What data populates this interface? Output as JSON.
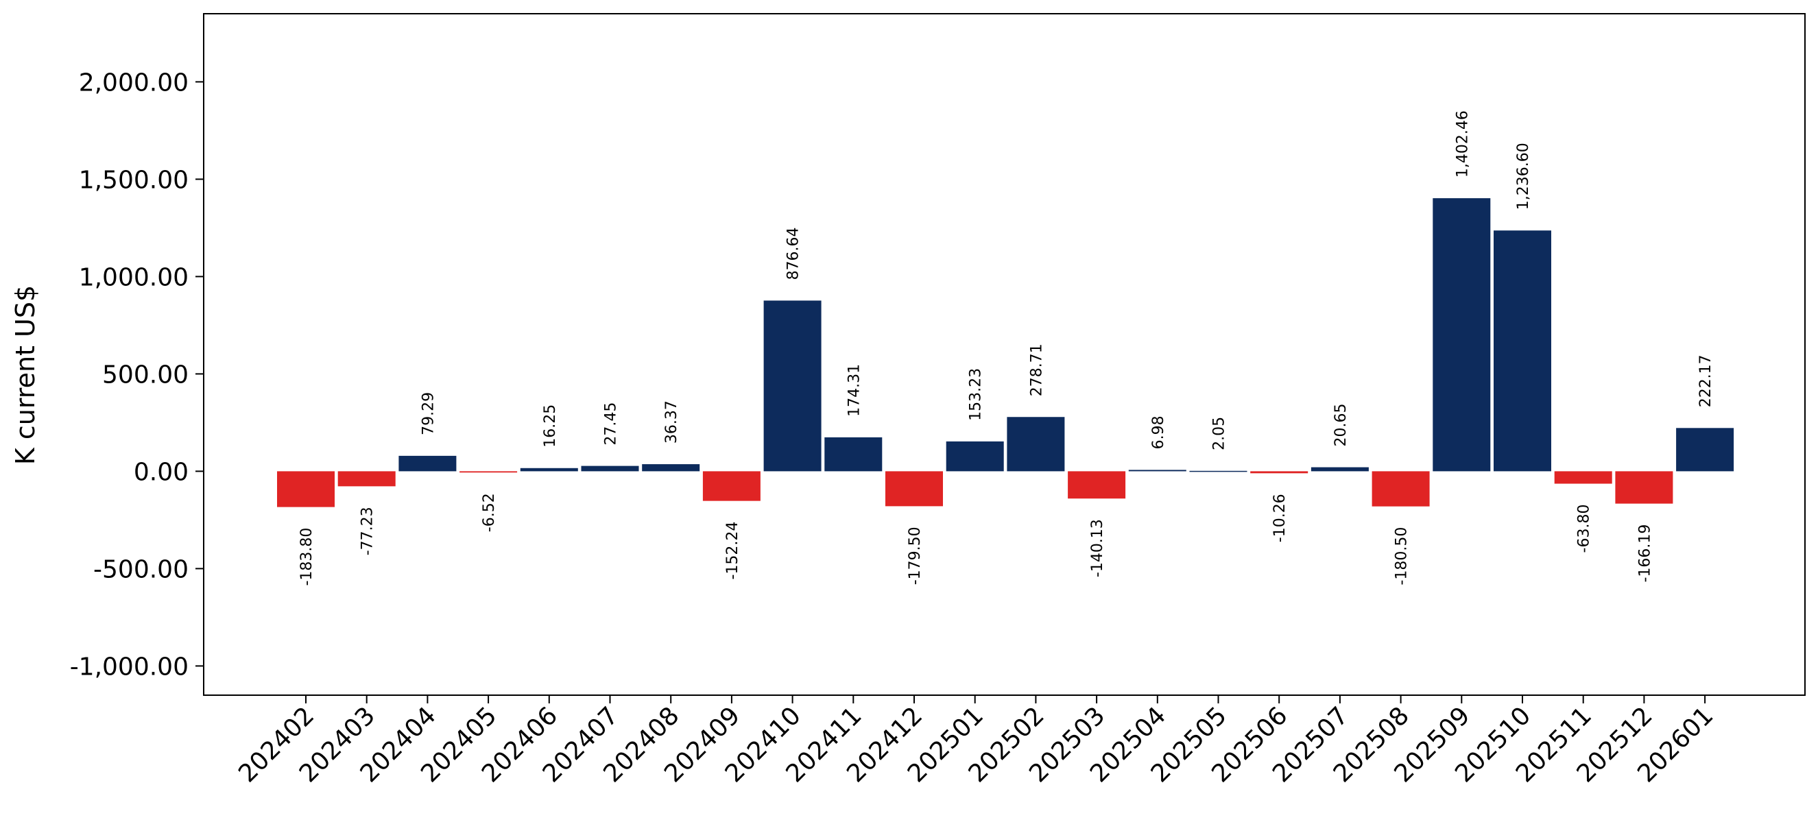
{
  "chart_data": {
    "type": "bar",
    "title": "",
    "xlabel": "",
    "ylabel": "K current US$",
    "ylim": [
      -1150,
      2350
    ],
    "yticks": [
      -1000,
      -500,
      0,
      500,
      1000,
      1500,
      2000
    ],
    "ytick_labels": [
      "-1,000.00",
      "-500.00",
      "0.00",
      "500.00",
      "1,000.00",
      "1,500.00",
      "2,000.00"
    ],
    "grid": false,
    "legend": "none",
    "positive_color": "#0d2b5c",
    "negative_color": "#e02424",
    "categories": [
      "202402",
      "202403",
      "202404",
      "202405",
      "202406",
      "202407",
      "202408",
      "202409",
      "202410",
      "202411",
      "202412",
      "202501",
      "202502",
      "202503",
      "202504",
      "202505",
      "202506",
      "202507",
      "202508",
      "202509",
      "202510",
      "202511",
      "202512",
      "202601"
    ],
    "values": [
      -183.8,
      -77.23,
      79.29,
      -6.52,
      16.25,
      27.45,
      36.37,
      -152.24,
      876.64,
      174.31,
      -179.5,
      153.23,
      278.71,
      -140.13,
      6.98,
      2.05,
      -10.26,
      20.65,
      -180.5,
      1402.46,
      1236.6,
      -63.8,
      -166.19,
      222.17
    ],
    "value_labels": [
      "-183.80",
      "-77.23",
      "79.29",
      "-6.52",
      "16.25",
      "27.45",
      "36.37",
      "-152.24",
      "876.64",
      "174.31",
      "-179.50",
      "153.23",
      "278.71",
      "-140.13",
      "6.98",
      "2.05",
      "-10.26",
      "20.65",
      "-180.50",
      "1,402.46",
      "1,236.60",
      "-63.80",
      "-166.19",
      "222.17"
    ]
  }
}
